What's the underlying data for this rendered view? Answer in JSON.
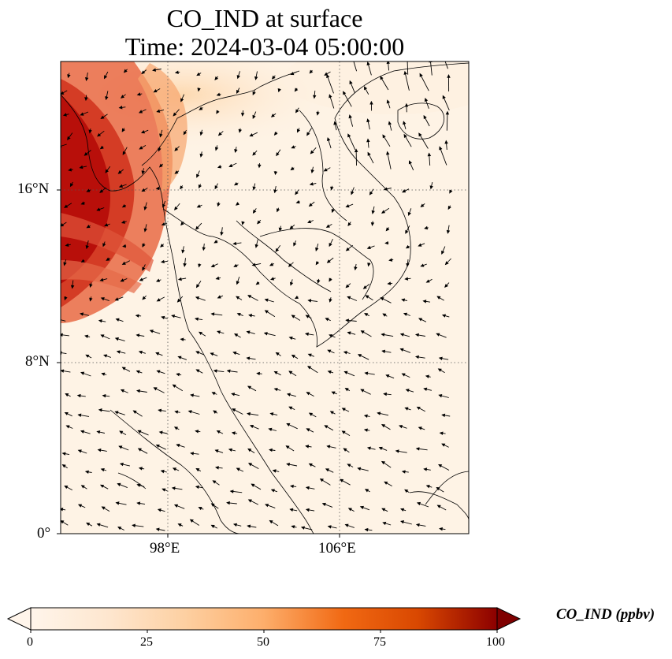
{
  "title": {
    "line1": "CO_IND at surface",
    "line2": "Time: 2024-03-04 05:00:00"
  },
  "axes": {
    "lat_ticks": [
      "16°N",
      "8°N",
      "0°"
    ],
    "lon_ticks": [
      "98°E",
      "106°E"
    ]
  },
  "colorbar": {
    "label": "CO_IND (ppbv)",
    "ticks": [
      "0",
      "25",
      "50",
      "75",
      "100"
    ],
    "colormap": [
      "#fff5eb",
      "#fdd9b4",
      "#fdab6b",
      "#f4743a",
      "#d8421b",
      "#b10606",
      "#7f0000"
    ]
  },
  "map": {
    "projection": "PlateCarree",
    "gridlines": "dotted",
    "lon_range": [
      93,
      112
    ],
    "lat_range": [
      0,
      22
    ],
    "field": "CO_IND plume concentrated over Andaman Sea / Myanmar coast, low elsewhere",
    "vectors": "surface wind arrows"
  }
}
